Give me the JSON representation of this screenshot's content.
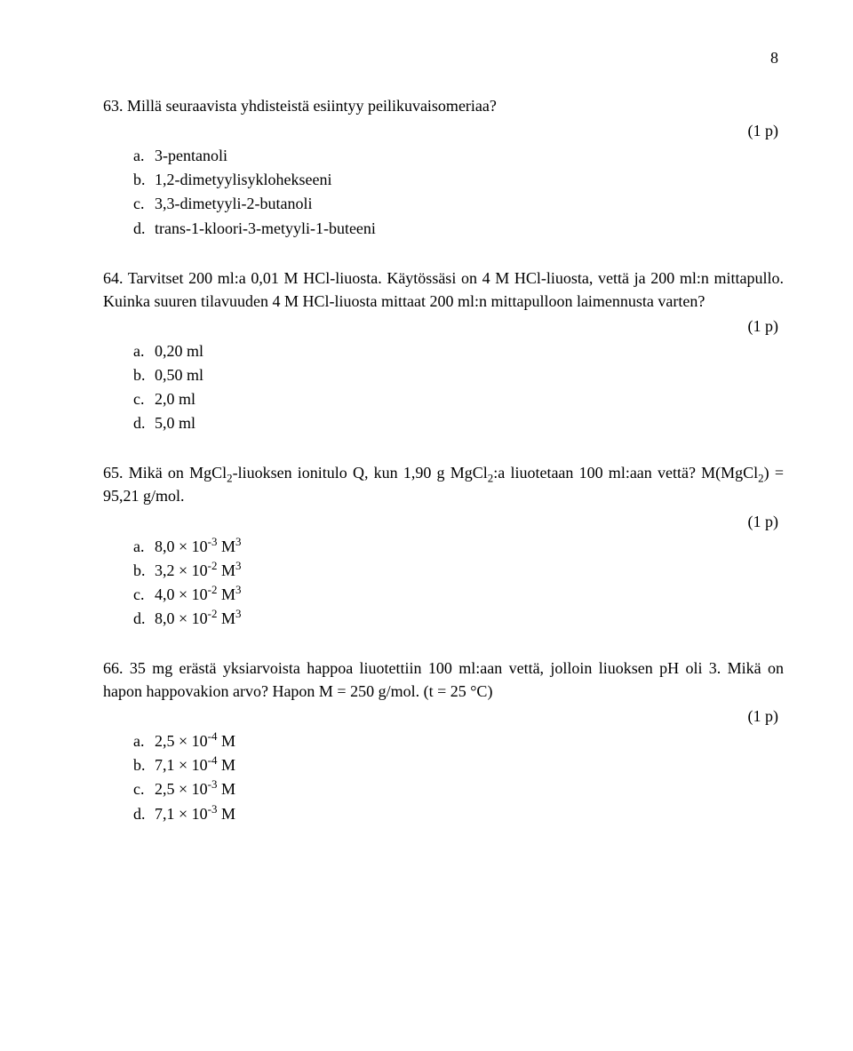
{
  "pageNumber": "8",
  "pointsLabel": "(1 p)",
  "q63": {
    "num": "63.",
    "stem": "Millä seuraavista yhdisteistä esiintyy peilikuvaisomeriaa?",
    "a": "3-pentanoli",
    "b": "1,2-dimetyylisyklohekseeni",
    "c": "3,3-dimetyyli-2-butanoli",
    "d": "trans-1-kloori-3-metyyli-1-buteeni"
  },
  "q64": {
    "num": "64.",
    "stem": "Tarvitset 200 ml:a 0,01 M HCl-liuosta. Käytössäsi on 4 M HCl-liuosta, vettä ja 200 ml:n mittapullo. Kuinka suuren tilavuuden 4 M HCl-liuosta mittaat 200 ml:n mittapulloon laimennusta varten?",
    "a": "0,20 ml",
    "b": "0,50 ml",
    "c": "2,0 ml",
    "d": "5,0 ml"
  },
  "q65": {
    "num": "65.",
    "stem_pre": "Mikä on MgCl",
    "stem_mid1": "-liuoksen ionitulo Q, kun 1,90 g MgCl",
    "stem_mid2": ":a liuotetaan 100 ml:aan vettä? M(MgCl",
    "stem_post": ") = 95,21 g/mol.",
    "a_pre": "8,0 × 10",
    "a_exp": "-3",
    "a_post": " M",
    "b_pre": "3,2 × 10",
    "b_exp": "-2",
    "b_post": " M",
    "c_pre": "4,0 × 10",
    "c_exp": "-2",
    "c_post": " M",
    "d_pre": "8,0 × 10",
    "d_exp": "-2",
    "d_post": " M"
  },
  "q66": {
    "num": "66.",
    "stem": "35 mg erästä yksiarvoista happoa liuotettiin 100 ml:aan vettä, jolloin liuoksen pH oli 3. Mikä on hapon happovakion arvo? Hapon M = 250 g/mol. (t = 25 °C)",
    "a_pre": "2,5 × 10",
    "a_exp": "-4",
    "a_post": " M",
    "b_pre": "7,1 × 10",
    "b_exp": "-4",
    "b_post": " M",
    "c_pre": "2,5 × 10",
    "c_exp": "-3",
    "c_post": " M",
    "d_pre": "7,1 × 10",
    "d_exp": "-3",
    "d_post": " M"
  },
  "letters": {
    "a": "a.",
    "b": "b.",
    "c": "c.",
    "d": "d."
  }
}
